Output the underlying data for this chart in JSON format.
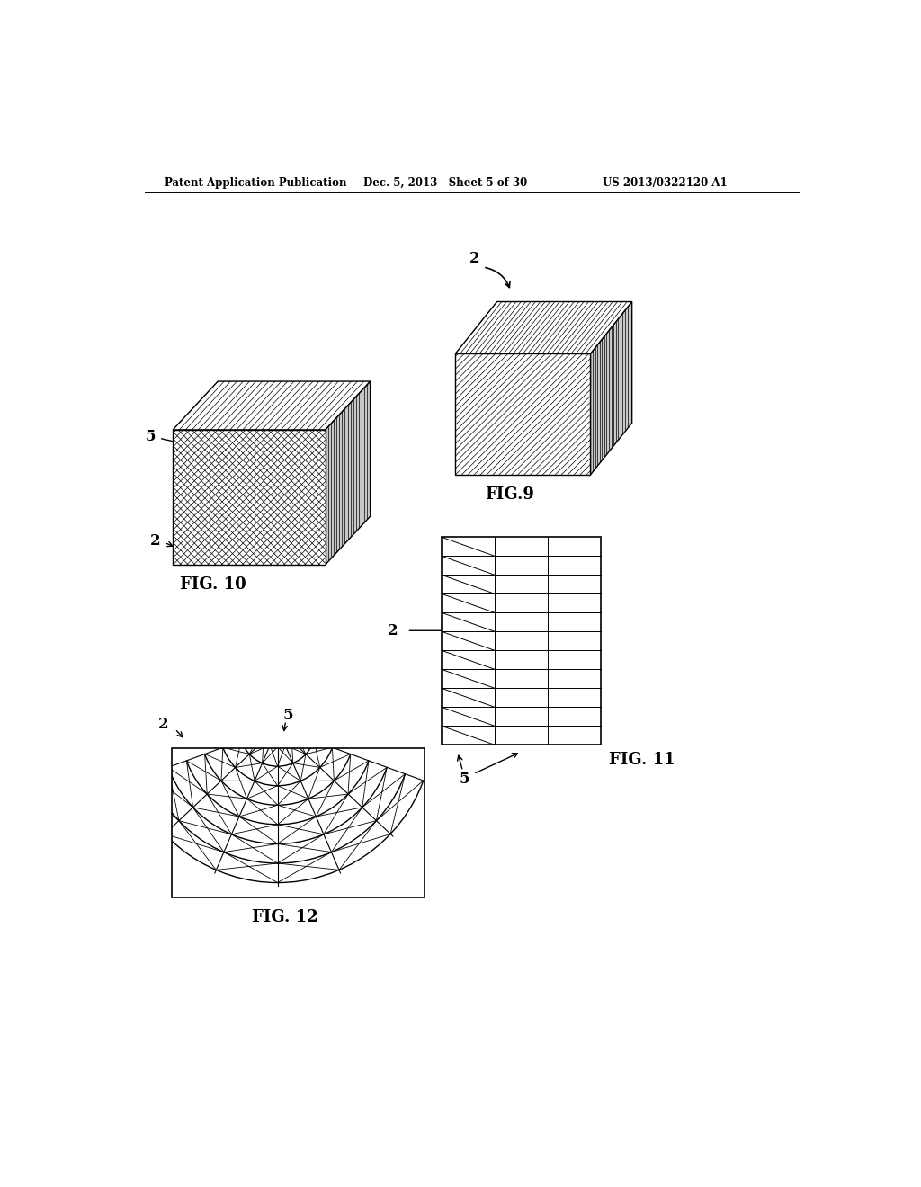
{
  "background_color": "#ffffff",
  "header_left": "Patent Application Publication",
  "header_mid": "Dec. 5, 2013   Sheet 5 of 30",
  "header_right": "US 2013/0322120 A1",
  "header_fontsize": 8.5,
  "fig9_label": "FIG.9",
  "fig10_label": "FIG. 10",
  "fig11_label": "FIG. 11",
  "fig12_label": "FIG. 12",
  "line_color": "#000000",
  "face_color": "#ffffff",
  "side_color": "#c8c8c8"
}
